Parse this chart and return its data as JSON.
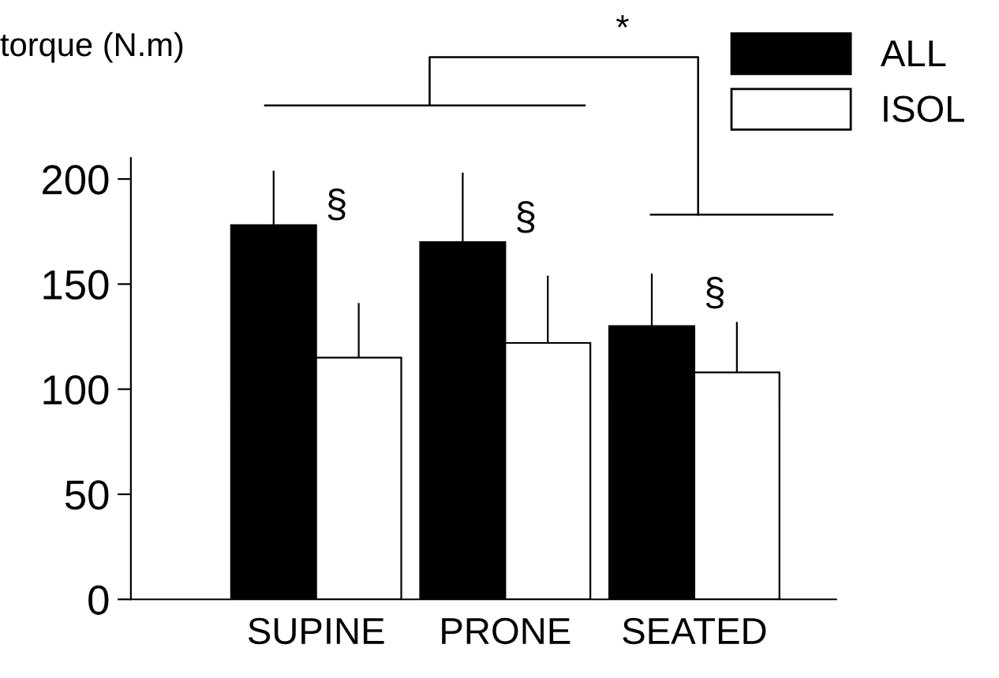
{
  "chart_data": {
    "type": "bar",
    "ylabel": "torque (N.m)",
    "categories": [
      "SUPINE",
      "PRONE",
      "SEATED"
    ],
    "series": [
      {
        "name": "ALL",
        "color": "#000000",
        "values": [
          178,
          170,
          130
        ],
        "errors": [
          [
            178,
            204
          ],
          [
            170,
            203
          ],
          [
            130,
            155
          ]
        ]
      },
      {
        "name": "ISOL",
        "color": "#ffffff",
        "values": [
          115,
          122,
          108
        ],
        "errors": [
          [
            115,
            141
          ],
          [
            122,
            154
          ],
          [
            108,
            132
          ]
        ]
      }
    ],
    "ylim": [
      0,
      210
    ],
    "yticks": [
      0,
      50,
      100,
      150,
      200
    ],
    "grid": false,
    "legend": "top right",
    "annotations": [
      "§",
      "§",
      "§",
      "*"
    ]
  }
}
